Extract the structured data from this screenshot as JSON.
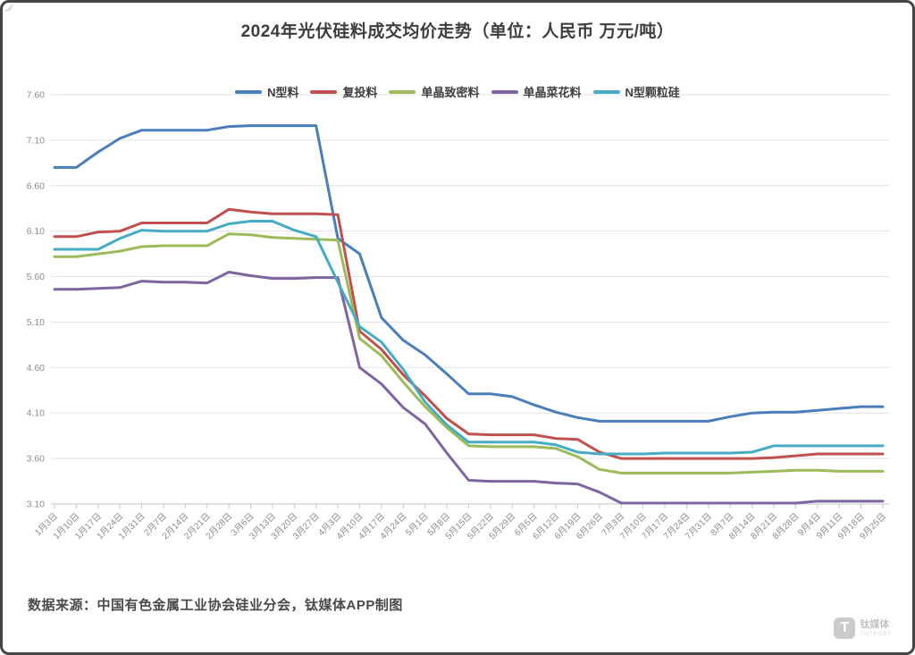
{
  "title": "2024年光伏硅料成交均价走势（单位：人民币 万元/吨）",
  "source_note": "数据来源：中国有色金属工业协会硅业分会，钛媒体APP制图",
  "watermark": {
    "logo_letter": "T",
    "brand": "钛媒体",
    "brand_en": "TMTPOST"
  },
  "colors": {
    "grid": "#e2e2e2",
    "axis": "#c6c6c6",
    "tick_label": "#8c8c8c",
    "title_text": "#3d3d3d",
    "legend_text": "#3f3f3f"
  },
  "chart_data": {
    "type": "line",
    "title": "2024年光伏硅料成交均价走势（单位：人民币 万元/吨）",
    "xlabel": "",
    "ylabel": "",
    "grid": true,
    "legend_position": "top",
    "ylim": [
      3.1,
      7.6
    ],
    "yticks": [
      3.1,
      3.6,
      4.1,
      4.6,
      5.1,
      5.6,
      6.1,
      6.6,
      7.1,
      7.6
    ],
    "x": [
      "1月3日",
      "1月10日",
      "1月17日",
      "1月24日",
      "1月31日",
      "2月7日",
      "2月14日",
      "2月21日",
      "2月28日",
      "3月6日",
      "3月13日",
      "3月20日",
      "3月27日",
      "4月3日",
      "4月10日",
      "4月17日",
      "4月24日",
      "5月1日",
      "5月8日",
      "5月15日",
      "5月22日",
      "5月29日",
      "6月5日",
      "6月12日",
      "6月19日",
      "6月26日",
      "7月3日",
      "7月10日",
      "7月17日",
      "7月24日",
      "7月31日",
      "8月7日",
      "8月14日",
      "8月21日",
      "8月28日",
      "9月4日",
      "9月11日",
      "9月18日",
      "9月25日"
    ],
    "series": [
      {
        "name": "N型料",
        "color": "#4a7ebb",
        "values": [
          6.8,
          6.8,
          6.97,
          7.12,
          7.21,
          7.21,
          7.21,
          7.21,
          7.25,
          7.26,
          7.26,
          7.26,
          7.26,
          6.02,
          5.85,
          5.15,
          4.9,
          4.74,
          4.53,
          4.31,
          4.31,
          4.28,
          4.19,
          4.11,
          4.05,
          4.01,
          4.01,
          4.01,
          4.01,
          4.01,
          4.01,
          4.06,
          4.1,
          4.11,
          4.11,
          4.13,
          4.15,
          4.17,
          4.17
        ]
      },
      {
        "name": "复投料",
        "color": "#c0504d",
        "values": [
          6.04,
          6.04,
          6.09,
          6.1,
          6.19,
          6.19,
          6.19,
          6.19,
          6.34,
          6.31,
          6.29,
          6.29,
          6.29,
          6.28,
          5.0,
          4.8,
          4.52,
          4.29,
          4.04,
          3.87,
          3.86,
          3.86,
          3.86,
          3.82,
          3.81,
          3.67,
          3.6,
          3.6,
          3.6,
          3.6,
          3.6,
          3.6,
          3.6,
          3.61,
          3.63,
          3.65,
          3.65,
          3.65,
          3.65
        ]
      },
      {
        "name": "单晶致密料",
        "color": "#9bbb59",
        "values": [
          5.82,
          5.82,
          5.85,
          5.88,
          5.93,
          5.94,
          5.94,
          5.94,
          6.07,
          6.06,
          6.03,
          6.02,
          6.01,
          6.0,
          4.92,
          4.73,
          4.44,
          4.17,
          3.94,
          3.74,
          3.73,
          3.73,
          3.73,
          3.71,
          3.62,
          3.48,
          3.44,
          3.44,
          3.44,
          3.44,
          3.44,
          3.44,
          3.45,
          3.46,
          3.47,
          3.47,
          3.46,
          3.46,
          3.46
        ]
      },
      {
        "name": "单晶菜花料",
        "color": "#8064a2",
        "values": [
          5.46,
          5.46,
          5.47,
          5.48,
          5.55,
          5.54,
          5.54,
          5.53,
          5.65,
          5.61,
          5.58,
          5.58,
          5.59,
          5.59,
          4.6,
          4.42,
          4.16,
          3.98,
          3.66,
          3.36,
          3.35,
          3.35,
          3.35,
          3.33,
          3.32,
          3.23,
          3.11,
          3.11,
          3.11,
          3.11,
          3.11,
          3.11,
          3.11,
          3.11,
          3.11,
          3.13,
          3.13,
          3.13,
          3.13
        ]
      },
      {
        "name": "N型颗粒硅",
        "color": "#46acc4",
        "values": [
          5.9,
          5.9,
          5.9,
          6.02,
          6.11,
          6.1,
          6.1,
          6.1,
          6.18,
          6.21,
          6.21,
          6.11,
          6.04,
          5.54,
          5.05,
          4.88,
          4.58,
          4.22,
          3.97,
          3.78,
          3.78,
          3.78,
          3.78,
          3.75,
          3.67,
          3.65,
          3.65,
          3.65,
          3.66,
          3.66,
          3.66,
          3.66,
          3.67,
          3.74,
          3.74,
          3.74,
          3.74,
          3.74,
          3.74
        ]
      }
    ]
  }
}
